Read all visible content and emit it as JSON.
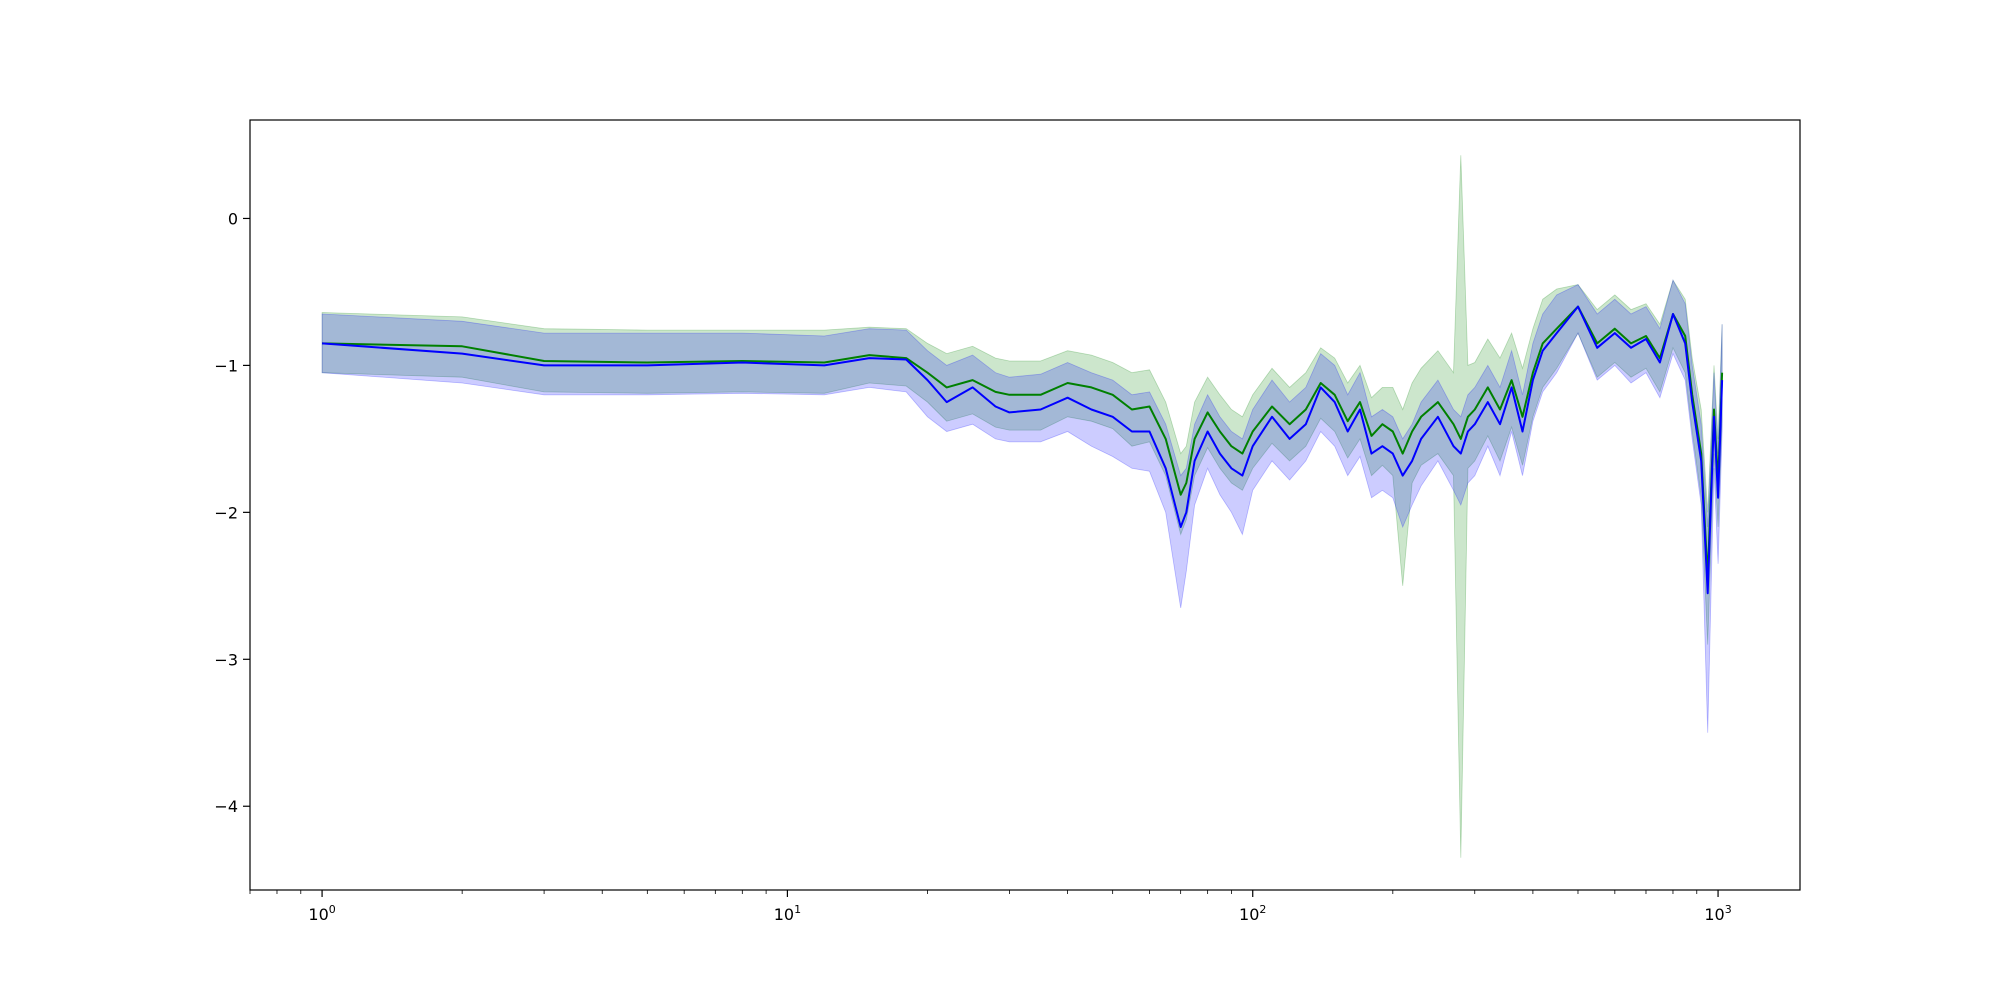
{
  "chart_data": {
    "type": "line",
    "title": "",
    "xlabel": "",
    "ylabel": "",
    "x_scale": "log",
    "xlim": [
      0.7,
      1500
    ],
    "ylim": [
      -4.57,
      0.67
    ],
    "grid": false,
    "legend": "none",
    "x_ticks": [
      {
        "value": 1,
        "base": "10",
        "exp": "0"
      },
      {
        "value": 10,
        "base": "10",
        "exp": "1"
      },
      {
        "value": 100,
        "base": "10",
        "exp": "2"
      },
      {
        "value": 1000,
        "base": "10",
        "exp": "3"
      }
    ],
    "y_ticks": [
      {
        "value": 0,
        "label": "0"
      },
      {
        "value": -1,
        "label": "−1"
      },
      {
        "value": -2,
        "label": "−2"
      },
      {
        "value": -3,
        "label": "−3"
      },
      {
        "value": -4,
        "label": "−4"
      }
    ],
    "series": [
      {
        "color": "#008000",
        "band_color": "#008000",
        "band_opacity": 0.2,
        "x": [
          1,
          2,
          3,
          5,
          8,
          12,
          15,
          18,
          20,
          22,
          25,
          28,
          30,
          35,
          40,
          45,
          50,
          55,
          60,
          65,
          70,
          72,
          75,
          80,
          85,
          90,
          95,
          100,
          110,
          120,
          130,
          140,
          150,
          160,
          170,
          180,
          190,
          200,
          210,
          220,
          230,
          250,
          270,
          280,
          290,
          300,
          320,
          340,
          360,
          380,
          400,
          420,
          450,
          500,
          550,
          600,
          650,
          700,
          750,
          800,
          850,
          880,
          920,
          950,
          980,
          1000,
          1020
        ],
        "y": [
          -0.85,
          -0.87,
          -0.97,
          -0.98,
          -0.97,
          -0.98,
          -0.93,
          -0.95,
          -1.05,
          -1.15,
          -1.1,
          -1.18,
          -1.2,
          -1.2,
          -1.12,
          -1.15,
          -1.2,
          -1.3,
          -1.28,
          -1.5,
          -1.88,
          -1.8,
          -1.5,
          -1.32,
          -1.45,
          -1.55,
          -1.6,
          -1.45,
          -1.28,
          -1.4,
          -1.3,
          -1.12,
          -1.2,
          -1.38,
          -1.25,
          -1.48,
          -1.4,
          -1.45,
          -1.6,
          -1.45,
          -1.35,
          -1.25,
          -1.4,
          -1.5,
          -1.35,
          -1.3,
          -1.15,
          -1.3,
          -1.1,
          -1.35,
          -1.05,
          -0.85,
          -0.75,
          -0.6,
          -0.85,
          -0.75,
          -0.85,
          -0.8,
          -0.95,
          -0.65,
          -0.8,
          -1.2,
          -1.6,
          -2.45,
          -1.3,
          -1.8,
          -1.05
        ],
        "upper": [
          -0.64,
          -0.67,
          -0.75,
          -0.76,
          -0.76,
          -0.76,
          -0.74,
          -0.75,
          -0.85,
          -0.92,
          -0.87,
          -0.95,
          -0.97,
          -0.97,
          -0.9,
          -0.93,
          -0.98,
          -1.05,
          -1.03,
          -1.25,
          -1.6,
          -1.55,
          -1.25,
          -1.08,
          -1.2,
          -1.3,
          -1.35,
          -1.2,
          -1.02,
          -1.15,
          -1.05,
          -0.88,
          -0.95,
          -1.12,
          -1.0,
          -1.22,
          -1.15,
          -1.15,
          -1.3,
          -1.12,
          -1.02,
          -0.9,
          -1.05,
          0.43,
          -1.0,
          -0.98,
          -0.82,
          -0.95,
          -0.78,
          -1.02,
          -0.75,
          -0.55,
          -0.48,
          -0.45,
          -0.62,
          -0.52,
          -0.62,
          -0.58,
          -0.72,
          -0.42,
          -0.55,
          -0.95,
          -1.3,
          -2.0,
          -1.0,
          -1.5,
          -0.72
        ],
        "lower": [
          -1.05,
          -1.08,
          -1.18,
          -1.19,
          -1.18,
          -1.19,
          -1.12,
          -1.14,
          -1.25,
          -1.38,
          -1.33,
          -1.42,
          -1.44,
          -1.44,
          -1.35,
          -1.38,
          -1.43,
          -1.55,
          -1.52,
          -1.75,
          -2.15,
          -2.05,
          -1.75,
          -1.56,
          -1.7,
          -1.8,
          -1.85,
          -1.7,
          -1.53,
          -1.65,
          -1.55,
          -1.36,
          -1.45,
          -1.63,
          -1.5,
          -1.75,
          -1.68,
          -1.75,
          -2.5,
          -1.8,
          -1.68,
          -1.6,
          -1.75,
          -4.35,
          -1.7,
          -1.65,
          -1.48,
          -1.65,
          -1.42,
          -1.68,
          -1.35,
          -1.15,
          -1.02,
          -0.78,
          -1.08,
          -0.98,
          -1.08,
          -1.02,
          -1.18,
          -0.88,
          -1.05,
          -1.45,
          -1.9,
          -2.9,
          -1.6,
          -2.1,
          -1.38
        ]
      },
      {
        "color": "#0000ff",
        "band_color": "#0000ff",
        "band_opacity": 0.2,
        "x": [
          1,
          2,
          3,
          5,
          8,
          12,
          15,
          18,
          20,
          22,
          25,
          28,
          30,
          35,
          40,
          45,
          50,
          55,
          60,
          65,
          70,
          72,
          75,
          80,
          85,
          90,
          95,
          100,
          110,
          120,
          130,
          140,
          150,
          160,
          170,
          180,
          190,
          200,
          210,
          220,
          230,
          250,
          270,
          280,
          290,
          300,
          320,
          340,
          360,
          380,
          400,
          420,
          450,
          500,
          550,
          600,
          650,
          700,
          750,
          800,
          850,
          880,
          920,
          950,
          980,
          1000,
          1020
        ],
        "y": [
          -0.85,
          -0.92,
          -1.0,
          -1.0,
          -0.98,
          -1.0,
          -0.95,
          -0.96,
          -1.1,
          -1.25,
          -1.15,
          -1.28,
          -1.32,
          -1.3,
          -1.22,
          -1.3,
          -1.35,
          -1.45,
          -1.45,
          -1.7,
          -2.1,
          -2.0,
          -1.65,
          -1.45,
          -1.6,
          -1.7,
          -1.75,
          -1.55,
          -1.35,
          -1.5,
          -1.4,
          -1.15,
          -1.25,
          -1.45,
          -1.3,
          -1.6,
          -1.55,
          -1.6,
          -1.75,
          -1.65,
          -1.5,
          -1.35,
          -1.55,
          -1.6,
          -1.45,
          -1.4,
          -1.25,
          -1.4,
          -1.15,
          -1.45,
          -1.1,
          -0.9,
          -0.78,
          -0.6,
          -0.88,
          -0.78,
          -0.88,
          -0.82,
          -0.98,
          -0.65,
          -0.85,
          -1.25,
          -1.65,
          -2.55,
          -1.35,
          -1.9,
          -1.1
        ],
        "upper": [
          -0.65,
          -0.7,
          -0.78,
          -0.78,
          -0.78,
          -0.8,
          -0.75,
          -0.76,
          -0.9,
          -1.0,
          -0.93,
          -1.05,
          -1.08,
          -1.06,
          -0.98,
          -1.05,
          -1.1,
          -1.2,
          -1.18,
          -1.4,
          -1.75,
          -1.7,
          -1.4,
          -1.2,
          -1.35,
          -1.45,
          -1.5,
          -1.3,
          -1.1,
          -1.25,
          -1.15,
          -0.92,
          -1.0,
          -1.2,
          -1.05,
          -1.35,
          -1.3,
          -1.35,
          -1.5,
          -1.4,
          -1.25,
          -1.1,
          -1.3,
          -1.35,
          -1.2,
          -1.15,
          -1.0,
          -1.15,
          -0.9,
          -1.2,
          -0.85,
          -0.65,
          -0.52,
          -0.45,
          -0.65,
          -0.55,
          -0.65,
          -0.6,
          -0.75,
          -0.42,
          -0.58,
          -1.0,
          -1.4,
          -2.1,
          -1.05,
          -1.6,
          -0.72
        ],
        "lower": [
          -1.05,
          -1.12,
          -1.2,
          -1.2,
          -1.19,
          -1.2,
          -1.15,
          -1.18,
          -1.35,
          -1.45,
          -1.4,
          -1.5,
          -1.52,
          -1.52,
          -1.45,
          -1.55,
          -1.62,
          -1.7,
          -1.72,
          -2.0,
          -2.65,
          -2.4,
          -1.95,
          -1.7,
          -1.88,
          -2.0,
          -2.15,
          -1.85,
          -1.65,
          -1.78,
          -1.65,
          -1.45,
          -1.55,
          -1.75,
          -1.62,
          -1.9,
          -1.85,
          -1.9,
          -2.1,
          -1.95,
          -1.82,
          -1.65,
          -1.85,
          -1.95,
          -1.8,
          -1.75,
          -1.55,
          -1.75,
          -1.45,
          -1.75,
          -1.38,
          -1.18,
          -1.05,
          -0.78,
          -1.1,
          -1.0,
          -1.12,
          -1.05,
          -1.22,
          -0.92,
          -1.1,
          -1.5,
          -1.95,
          -3.5,
          -1.7,
          -2.35,
          -1.45
        ]
      }
    ]
  }
}
